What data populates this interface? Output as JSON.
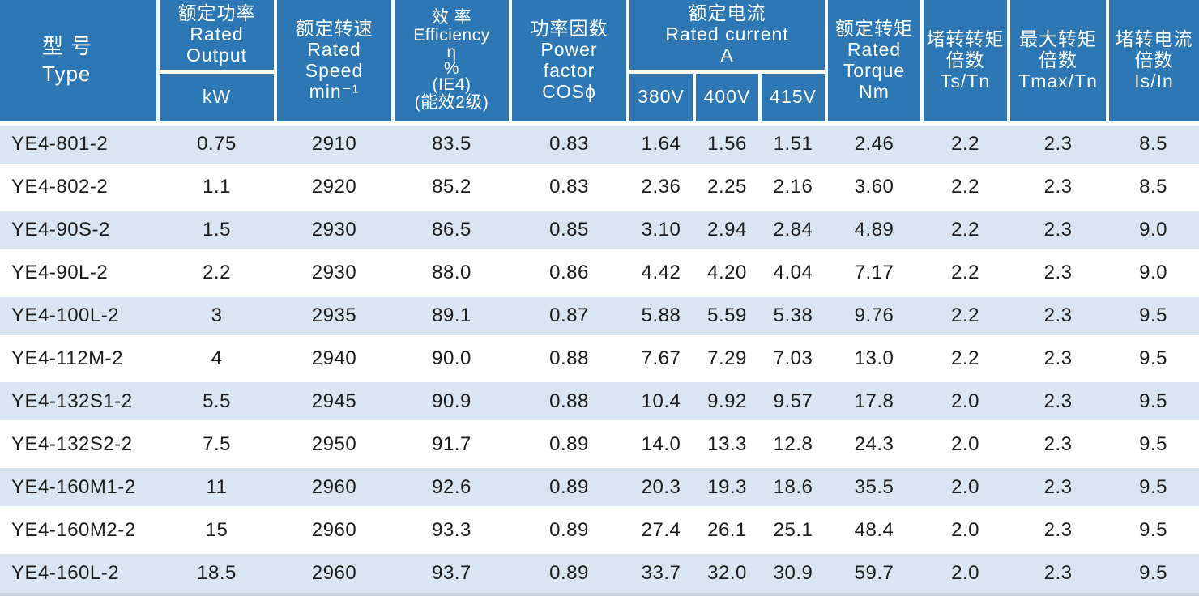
{
  "colors": {
    "header_bg": "#2E77B5",
    "header_text": "#FFFFFF",
    "row_alt_bg": "#D9E6F1",
    "row_bg": "#FFFFFF",
    "body_text": "#1B1B1B",
    "divider": "#FFFFFF",
    "bottom_edge": "#C9D2DA"
  },
  "header": {
    "type": {
      "zh": "型 号",
      "en": "Type"
    },
    "rated_output": {
      "zh": "额定功率",
      "en1": "Rated",
      "en2": "Output",
      "unit": "kW"
    },
    "rated_speed": {
      "zh": "额定转速",
      "en1": "Rated",
      "en2": "Speed",
      "unit": "min⁻¹"
    },
    "efficiency": {
      "zh": "效 率",
      "en": "Efficiency",
      "sym": "η",
      "pct": "%",
      "grade1": "(IE4)",
      "grade2": "(能效2级)"
    },
    "power_factor": {
      "zh": "功率因数",
      "en1": "Power",
      "en2": "factor",
      "sym": "COSϕ"
    },
    "rated_current": {
      "zh": "额定电流",
      "en": "Rated current",
      "unit": "A",
      "volt_380": "380V",
      "volt_400": "400V",
      "volt_415": "415V"
    },
    "rated_torque": {
      "zh": "额定转矩",
      "en1": "Rated",
      "en2": "Torque",
      "unit": "Nm"
    },
    "stall_torque_ratio": {
      "zh1": "堵转转矩",
      "zh2": "倍数",
      "sym": "Ts/Tn"
    },
    "max_torque_ratio": {
      "zh1": "最大转矩",
      "zh2": "倍数",
      "sym": "Tmax/Tn"
    },
    "stall_current_ratio": {
      "zh1": "堵转电流",
      "zh2": "倍数",
      "sym": "Is/In"
    }
  },
  "rows": [
    [
      "YE4-801-2",
      "0.75",
      "2910",
      "83.5",
      "0.83",
      "1.64",
      "1.56",
      "1.51",
      "2.46",
      "2.2",
      "2.3",
      "8.5"
    ],
    [
      "YE4-802-2",
      "1.1",
      "2920",
      "85.2",
      "0.83",
      "2.36",
      "2.25",
      "2.16",
      "3.60",
      "2.2",
      "2.3",
      "8.5"
    ],
    [
      "YE4-90S-2",
      "1.5",
      "2930",
      "86.5",
      "0.85",
      "3.10",
      "2.94",
      "2.84",
      "4.89",
      "2.2",
      "2.3",
      "9.0"
    ],
    [
      "YE4-90L-2",
      "2.2",
      "2930",
      "88.0",
      "0.86",
      "4.42",
      "4.20",
      "4.04",
      "7.17",
      "2.2",
      "2.3",
      "9.0"
    ],
    [
      "YE4-100L-2",
      "3",
      "2935",
      "89.1",
      "0.87",
      "5.88",
      "5.59",
      "5.38",
      "9.76",
      "2.2",
      "2.3",
      "9.5"
    ],
    [
      "YE4-112M-2",
      "4",
      "2940",
      "90.0",
      "0.88",
      "7.67",
      "7.29",
      "7.03",
      "13.0",
      "2.2",
      "2.3",
      "9.5"
    ],
    [
      "YE4-132S1-2",
      "5.5",
      "2945",
      "90.9",
      "0.88",
      "10.4",
      "9.92",
      "9.57",
      "17.8",
      "2.0",
      "2.3",
      "9.5"
    ],
    [
      "YE4-132S2-2",
      "7.5",
      "2950",
      "91.7",
      "0.89",
      "14.0",
      "13.3",
      "12.8",
      "24.3",
      "2.0",
      "2.3",
      "9.5"
    ],
    [
      "YE4-160M1-2",
      "11",
      "2960",
      "92.6",
      "0.89",
      "20.3",
      "19.3",
      "18.6",
      "35.5",
      "2.0",
      "2.3",
      "9.5"
    ],
    [
      "YE4-160M2-2",
      "15",
      "2960",
      "93.3",
      "0.89",
      "27.4",
      "26.1",
      "25.1",
      "48.4",
      "2.0",
      "2.3",
      "9.5"
    ],
    [
      "YE4-160L-2",
      "18.5",
      "2960",
      "93.7",
      "0.89",
      "33.7",
      "32.0",
      "30.9",
      "59.7",
      "2.0",
      "2.3",
      "9.5"
    ]
  ]
}
